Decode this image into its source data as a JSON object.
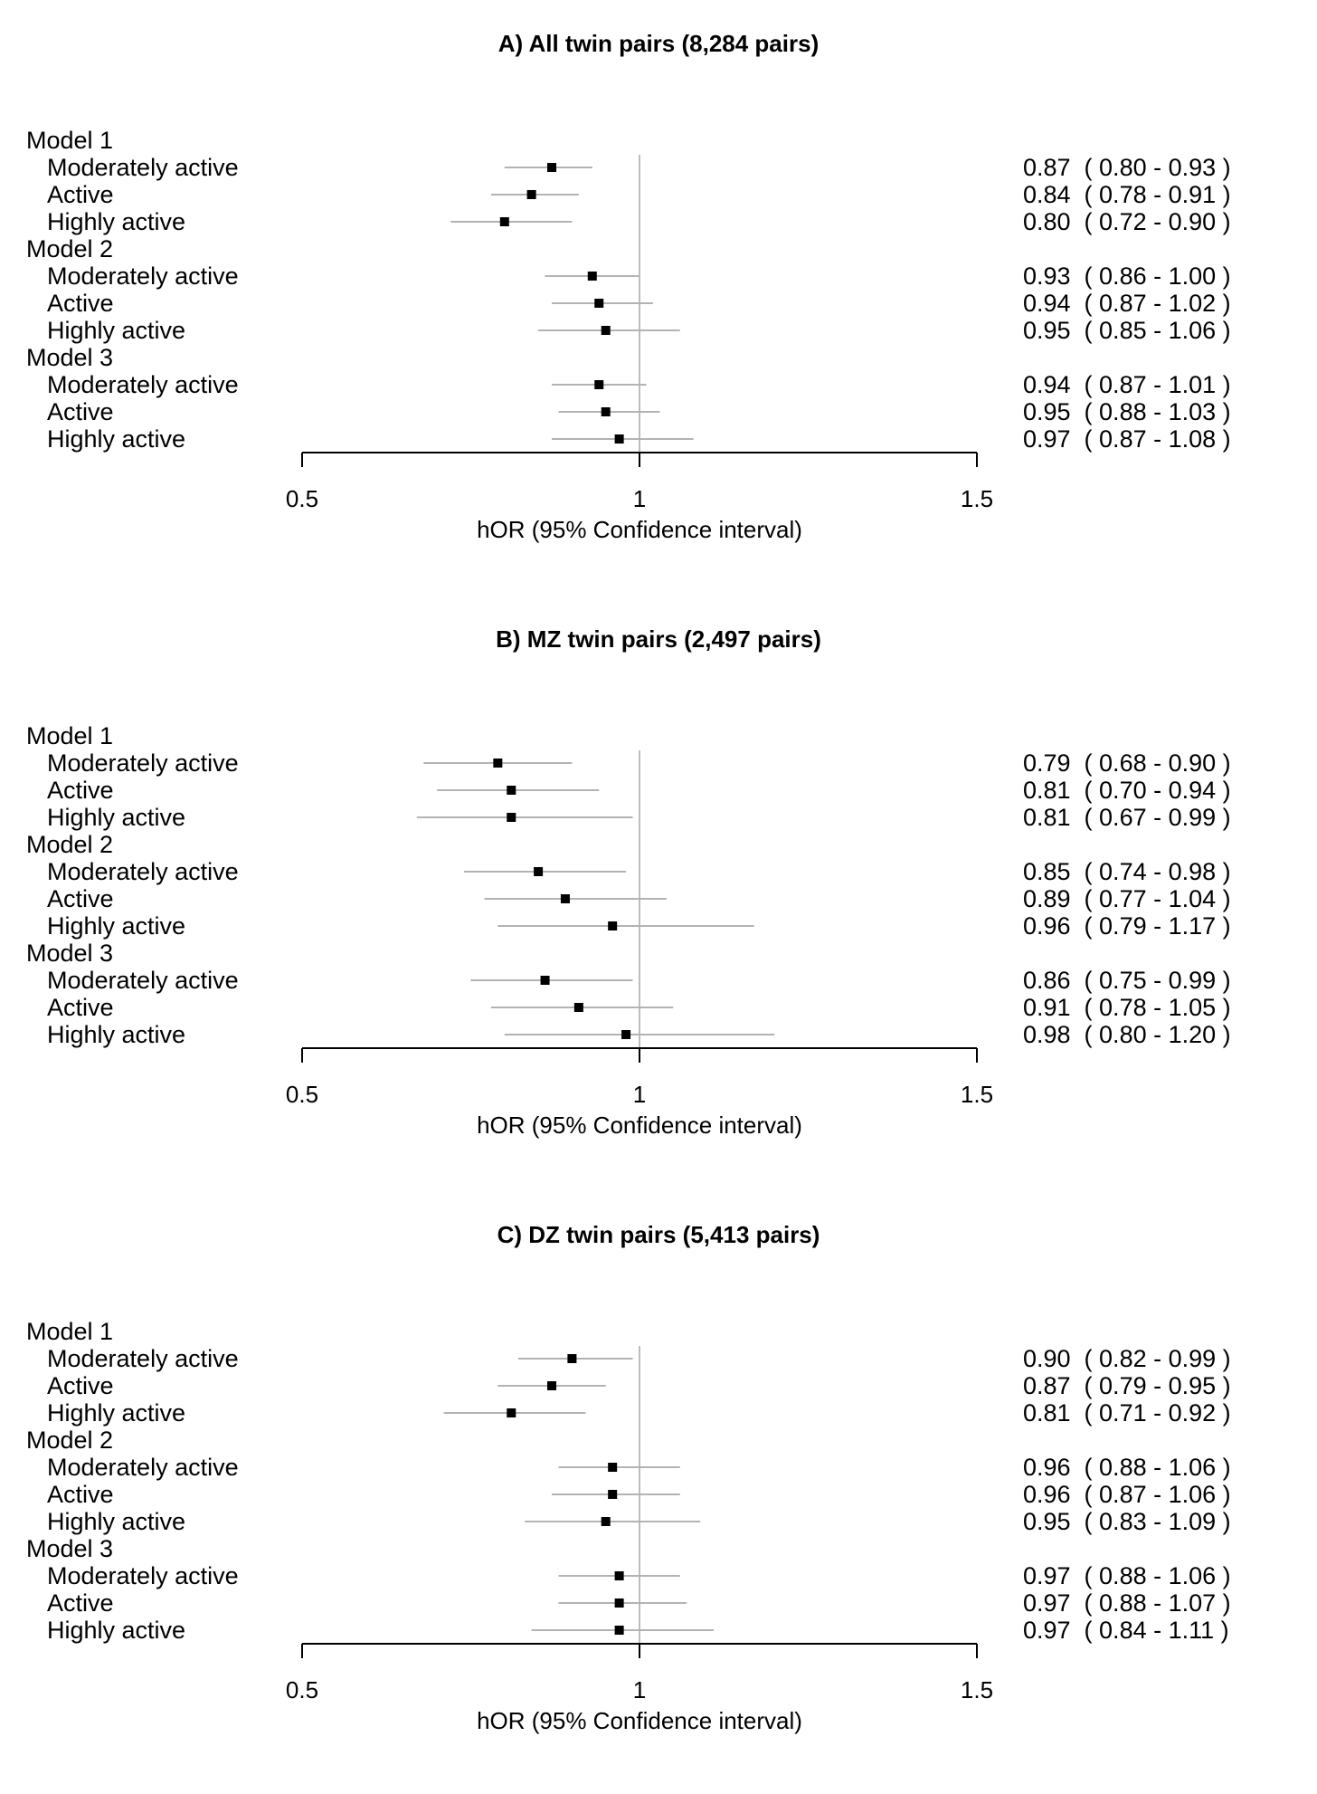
{
  "chart_data": [
    {
      "type": "forest",
      "title": "A) All twin pairs (8,284 pairs)",
      "xlabel": "hOR (95% Confidence interval)",
      "xlim": [
        0.5,
        1.5
      ],
      "ticks": [
        "0.5",
        "1",
        "1.5"
      ],
      "tick_values": [
        0.5,
        1.0,
        1.5
      ],
      "reference_line": 1.0,
      "groups": [
        {
          "name": "Model 1",
          "rows": [
            {
              "label": "Moderately active",
              "or": 0.87,
              "lo": 0.8,
              "hi": 0.93,
              "text": "0.87  ( 0.80 - 0.93 )"
            },
            {
              "label": "Active",
              "or": 0.84,
              "lo": 0.78,
              "hi": 0.91,
              "text": "0.84  ( 0.78 - 0.91 )"
            },
            {
              "label": "Highly active",
              "or": 0.8,
              "lo": 0.72,
              "hi": 0.9,
              "text": "0.80  ( 0.72 - 0.90 )"
            }
          ]
        },
        {
          "name": "Model 2",
          "rows": [
            {
              "label": "Moderately active",
              "or": 0.93,
              "lo": 0.86,
              "hi": 1.0,
              "text": "0.93  ( 0.86 - 1.00 )"
            },
            {
              "label": "Active",
              "or": 0.94,
              "lo": 0.87,
              "hi": 1.02,
              "text": "0.94  ( 0.87 - 1.02 )"
            },
            {
              "label": "Highly active",
              "or": 0.95,
              "lo": 0.85,
              "hi": 1.06,
              "text": "0.95  ( 0.85 - 1.06 )"
            }
          ]
        },
        {
          "name": "Model 3",
          "rows": [
            {
              "label": "Moderately active",
              "or": 0.94,
              "lo": 0.87,
              "hi": 1.01,
              "text": "0.94  ( 0.87 - 1.01 )"
            },
            {
              "label": "Active",
              "or": 0.95,
              "lo": 0.88,
              "hi": 1.03,
              "text": "0.95  ( 0.88 - 1.03 )"
            },
            {
              "label": "Highly active",
              "or": 0.97,
              "lo": 0.87,
              "hi": 1.08,
              "text": "0.97  ( 0.87 - 1.08 )"
            }
          ]
        }
      ]
    },
    {
      "type": "forest",
      "title": "B) MZ twin pairs (2,497 pairs)",
      "xlabel": "hOR (95% Confidence interval)",
      "xlim": [
        0.5,
        1.5
      ],
      "ticks": [
        "0.5",
        "1",
        "1.5"
      ],
      "tick_values": [
        0.5,
        1.0,
        1.5
      ],
      "reference_line": 1.0,
      "groups": [
        {
          "name": "Model 1",
          "rows": [
            {
              "label": "Moderately active",
              "or": 0.79,
              "lo": 0.68,
              "hi": 0.9,
              "text": "0.79  ( 0.68 - 0.90 )"
            },
            {
              "label": "Active",
              "or": 0.81,
              "lo": 0.7,
              "hi": 0.94,
              "text": "0.81  ( 0.70 - 0.94 )"
            },
            {
              "label": "Highly active",
              "or": 0.81,
              "lo": 0.67,
              "hi": 0.99,
              "text": "0.81  ( 0.67 - 0.99 )"
            }
          ]
        },
        {
          "name": "Model 2",
          "rows": [
            {
              "label": "Moderately active",
              "or": 0.85,
              "lo": 0.74,
              "hi": 0.98,
              "text": "0.85  ( 0.74 - 0.98 )"
            },
            {
              "label": "Active",
              "or": 0.89,
              "lo": 0.77,
              "hi": 1.04,
              "text": "0.89  ( 0.77 - 1.04 )"
            },
            {
              "label": "Highly active",
              "or": 0.96,
              "lo": 0.79,
              "hi": 1.17,
              "text": "0.96  ( 0.79 - 1.17 )"
            }
          ]
        },
        {
          "name": "Model 3",
          "rows": [
            {
              "label": "Moderately active",
              "or": 0.86,
              "lo": 0.75,
              "hi": 0.99,
              "text": "0.86  ( 0.75 - 0.99 )"
            },
            {
              "label": "Active",
              "or": 0.91,
              "lo": 0.78,
              "hi": 1.05,
              "text": "0.91  ( 0.78 - 1.05 )"
            },
            {
              "label": "Highly active",
              "or": 0.98,
              "lo": 0.8,
              "hi": 1.2,
              "text": "0.98  ( 0.80 - 1.20 )"
            }
          ]
        }
      ]
    },
    {
      "type": "forest",
      "title": "C) DZ twin pairs (5,413 pairs)",
      "xlabel": "hOR (95% Confidence interval)",
      "xlim": [
        0.5,
        1.5
      ],
      "ticks": [
        "0.5",
        "1",
        "1.5"
      ],
      "tick_values": [
        0.5,
        1.0,
        1.5
      ],
      "reference_line": 1.0,
      "groups": [
        {
          "name": "Model 1",
          "rows": [
            {
              "label": "Moderately active",
              "or": 0.9,
              "lo": 0.82,
              "hi": 0.99,
              "text": "0.90  ( 0.82 - 0.99 )"
            },
            {
              "label": "Active",
              "or": 0.87,
              "lo": 0.79,
              "hi": 0.95,
              "text": "0.87  ( 0.79 - 0.95 )"
            },
            {
              "label": "Highly active",
              "or": 0.81,
              "lo": 0.71,
              "hi": 0.92,
              "text": "0.81  ( 0.71 - 0.92 )"
            }
          ]
        },
        {
          "name": "Model 2",
          "rows": [
            {
              "label": "Moderately active",
              "or": 0.96,
              "lo": 0.88,
              "hi": 1.06,
              "text": "0.96  ( 0.88 - 1.06 )"
            },
            {
              "label": "Active",
              "or": 0.96,
              "lo": 0.87,
              "hi": 1.06,
              "text": "0.96  ( 0.87 - 1.06 )"
            },
            {
              "label": "Highly active",
              "or": 0.95,
              "lo": 0.83,
              "hi": 1.09,
              "text": "0.95  ( 0.83 - 1.09 )"
            }
          ]
        },
        {
          "name": "Model 3",
          "rows": [
            {
              "label": "Moderately active",
              "or": 0.97,
              "lo": 0.88,
              "hi": 1.06,
              "text": "0.97  ( 0.88 - 1.06 )"
            },
            {
              "label": "Active",
              "or": 0.97,
              "lo": 0.88,
              "hi": 1.07,
              "text": "0.97  ( 0.88 - 1.07 )"
            },
            {
              "label": "Highly active",
              "or": 0.97,
              "lo": 0.84,
              "hi": 1.11,
              "text": "0.97  ( 0.84 - 1.11 )"
            }
          ]
        }
      ]
    }
  ],
  "colors": {
    "ci_line": "#b3b3b3",
    "reference_line": "#bdbdbd",
    "marker": "#000000",
    "axis": "#000000"
  }
}
